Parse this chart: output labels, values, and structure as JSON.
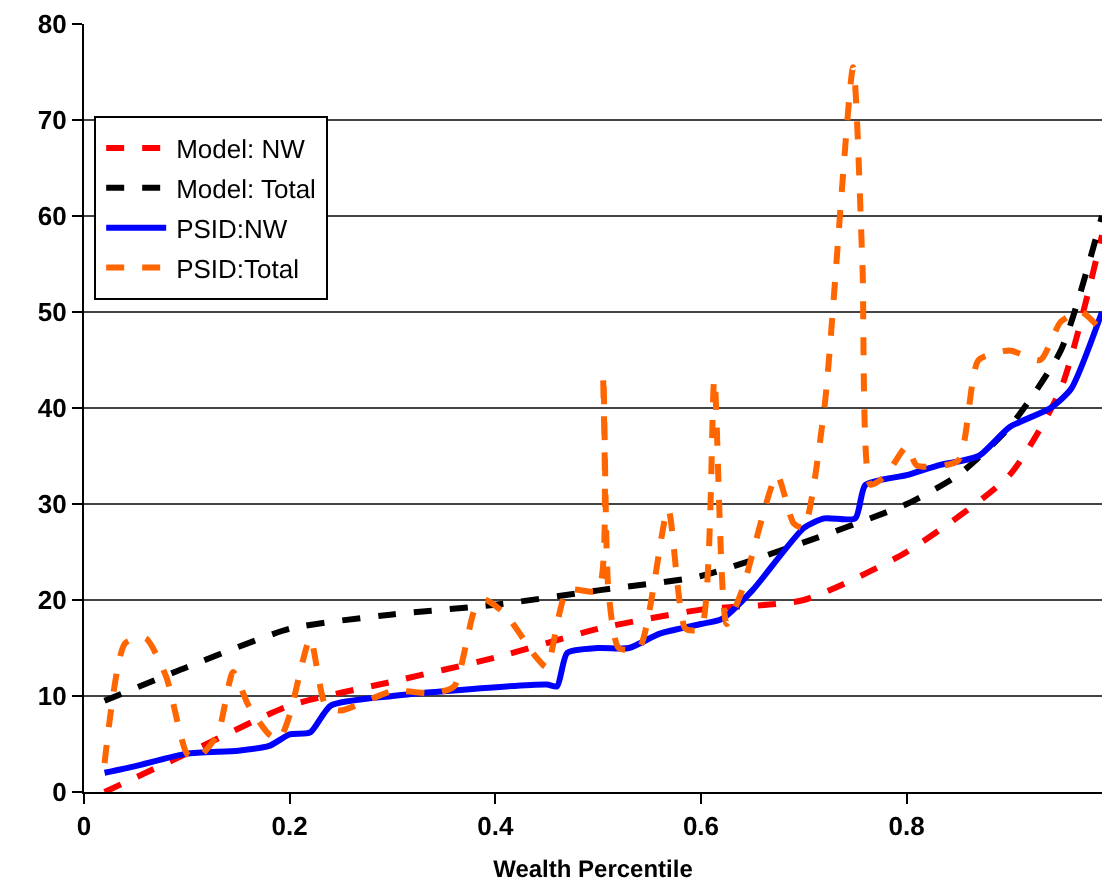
{
  "chart_data": {
    "type": "line",
    "xlabel": "Wealth Percentile",
    "xlim": [
      0,
      0.99
    ],
    "xticks": [
      0,
      0.2,
      0.4,
      0.6,
      0.8
    ],
    "ylim": [
      0,
      80
    ],
    "yticks": [
      0,
      10,
      20,
      30,
      40,
      50,
      60,
      70,
      80
    ],
    "grid": "y",
    "legend": "top left",
    "marker": "none",
    "series": [
      {
        "name": "Model: NW",
        "color": "#ff0000",
        "line_style": "dashed",
        "x": [
          0.02,
          0.1,
          0.2,
          0.3,
          0.4,
          0.5,
          0.6,
          0.7,
          0.8,
          0.9,
          0.95,
          0.99
        ],
        "values": [
          0,
          4,
          9,
          11.5,
          14,
          17,
          19,
          20,
          25,
          33,
          42,
          58
        ]
      },
      {
        "name": "Model: Total",
        "color": "#000000",
        "line_style": "dashed",
        "x": [
          0.02,
          0.1,
          0.2,
          0.3,
          0.4,
          0.5,
          0.6,
          0.7,
          0.8,
          0.85,
          0.9,
          0.95,
          0.99
        ],
        "values": [
          9.5,
          13,
          17,
          18.5,
          19.5,
          21,
          22.5,
          26,
          30,
          33,
          38,
          46,
          60
        ]
      },
      {
        "name": "PSID:NW",
        "color": "#0000ff",
        "line_style": "solid",
        "x": [
          0.02,
          0.05,
          0.1,
          0.15,
          0.18,
          0.2,
          0.22,
          0.24,
          0.3,
          0.35,
          0.45,
          0.46,
          0.47,
          0.5,
          0.53,
          0.56,
          0.6,
          0.62,
          0.65,
          0.7,
          0.72,
          0.75,
          0.76,
          0.8,
          0.83,
          0.87,
          0.9,
          0.94,
          0.96,
          0.99
        ],
        "values": [
          2,
          2.7,
          4,
          4.3,
          4.8,
          6,
          6.2,
          9,
          10,
          10.5,
          11.2,
          11,
          14.5,
          15,
          15,
          16.5,
          17.5,
          18,
          21,
          27.5,
          28.5,
          28.5,
          32,
          33,
          34,
          35,
          38,
          40,
          42,
          50
        ]
      },
      {
        "name": "PSID:Total",
        "color": "#ff6600",
        "line_style": "dashed",
        "x": [
          0.02,
          0.04,
          0.06,
          0.08,
          0.1,
          0.11,
          0.13,
          0.145,
          0.16,
          0.18,
          0.19,
          0.2,
          0.22,
          0.235,
          0.25,
          0.3,
          0.34,
          0.36,
          0.38,
          0.39,
          0.41,
          0.44,
          0.45,
          0.47,
          0.5,
          0.505,
          0.51,
          0.52,
          0.54,
          0.568,
          0.585,
          0.6,
          0.613,
          0.625,
          0.64,
          0.674,
          0.69,
          0.7,
          0.72,
          0.748,
          0.757,
          0.765,
          0.78,
          0.8,
          0.81,
          0.85,
          0.87,
          0.9,
          0.93,
          0.95,
          0.97,
          0.99
        ],
        "values": [
          3,
          15.5,
          16,
          12,
          4,
          3.5,
          6,
          12.5,
          9,
          6,
          5.5,
          8,
          16,
          9,
          8.5,
          10.5,
          10.3,
          11,
          19,
          20,
          18.5,
          14,
          13,
          21,
          21,
          43.5,
          21,
          15,
          15,
          29.5,
          17,
          17,
          43,
          17.5,
          21,
          33,
          28,
          27.5,
          40,
          75.5,
          55,
          32,
          33,
          36,
          34,
          34.5,
          45,
          46,
          45,
          49,
          50,
          48
        ]
      }
    ]
  }
}
